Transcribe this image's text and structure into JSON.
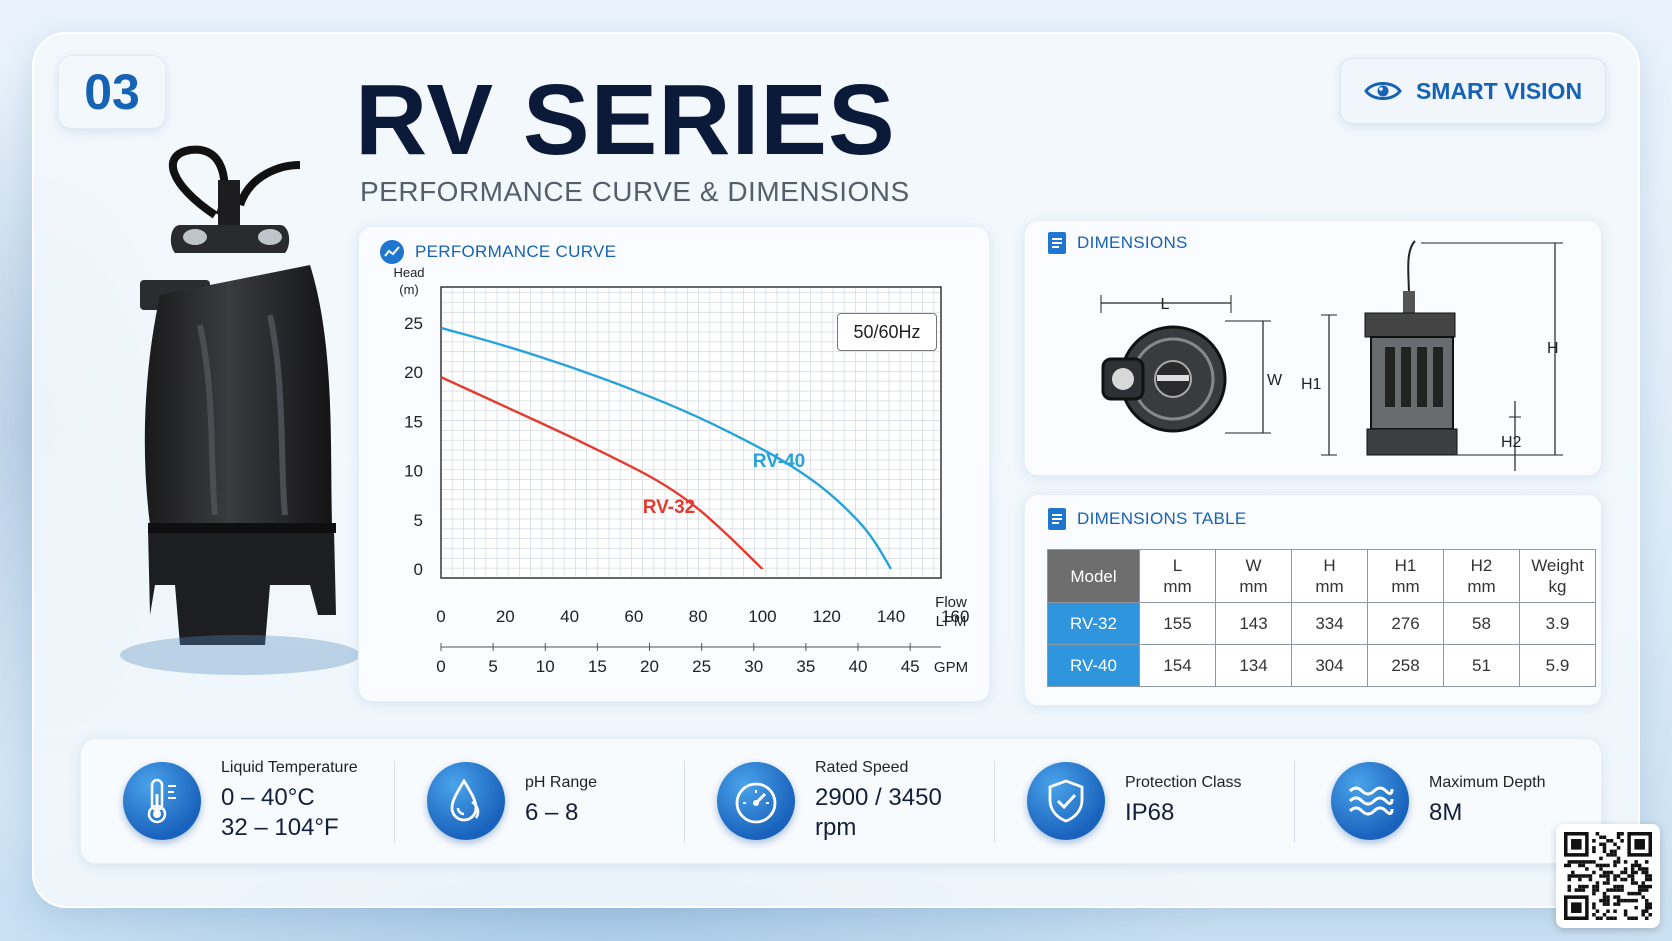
{
  "badge": {
    "number": "03"
  },
  "header": {
    "title": "RV SERIES",
    "subtitle": "PERFORMANCE CURVE & DIMENSIONS"
  },
  "smart_vision": {
    "label": "SMART VISION",
    "icon": "eye-icon"
  },
  "performance": {
    "heading": "PERFORMANCE CURVE",
    "icon": "gauge-chart-icon",
    "freq_label": "50/60Hz"
  },
  "chart_data": {
    "type": "line",
    "title": "",
    "ylabel": "Head\n(m)",
    "ylabel_lines": [
      "Head",
      "(m)"
    ],
    "xlabel": "Flow LPM",
    "xlabel_lines": [
      "Flow",
      "LPM"
    ],
    "x2label": "GPM",
    "xlim": [
      0,
      160
    ],
    "ylim": [
      0,
      25
    ],
    "x_ticks": [
      "0",
      "20",
      "40",
      "60",
      "80",
      "100",
      "120",
      "140",
      "160"
    ],
    "x2_ticks": [
      "0",
      "5",
      "10",
      "15",
      "20",
      "25",
      "30",
      "35",
      "40",
      "45"
    ],
    "y_ticks": [
      "0",
      "5",
      "10",
      "15",
      "20",
      "25"
    ],
    "grid": true,
    "series": [
      {
        "name": "RV-32",
        "color": "#e53a2e",
        "x": [
          0,
          20,
          40,
          60,
          70,
          80,
          90,
          95,
          100
        ],
        "y": [
          19.5,
          16.5,
          13.5,
          10.3,
          8.5,
          6.2,
          3.2,
          1.6,
          0
        ]
      },
      {
        "name": "RV-40",
        "color": "#27a3dc",
        "x": [
          0,
          20,
          40,
          60,
          80,
          100,
          110,
          120,
          130,
          135,
          140
        ],
        "y": [
          24.5,
          22.7,
          20.6,
          18.2,
          15.5,
          12.2,
          10.3,
          8.0,
          4.9,
          2.8,
          0
        ]
      }
    ]
  },
  "dimensions": {
    "heading": "DIMENSIONS",
    "labels": {
      "L": "L",
      "W": "W",
      "H1": "H1",
      "H": "H",
      "H2": "H2"
    }
  },
  "dimensions_table": {
    "heading": "DIMENSIONS TABLE",
    "headers": [
      {
        "top": "Model",
        "bottom": ""
      },
      {
        "top": "L",
        "bottom": "mm"
      },
      {
        "top": "W",
        "bottom": "mm"
      },
      {
        "top": "H",
        "bottom": "mm"
      },
      {
        "top": "H1",
        "bottom": "mm"
      },
      {
        "top": "H2",
        "bottom": "mm"
      },
      {
        "top": "Weight",
        "bottom": "kg"
      }
    ],
    "rows": [
      [
        "RV-32",
        "155",
        "143",
        "334",
        "276",
        "58",
        "3.9"
      ],
      [
        "RV-40",
        "154",
        "134",
        "304",
        "258",
        "51",
        "5.9"
      ]
    ]
  },
  "specs": [
    {
      "icon": "thermometer-icon",
      "label": "Liquid Temperature",
      "value1": "0 – 40°C",
      "value2": "32 – 104°F"
    },
    {
      "icon": "water-drop-icon",
      "label": "pH Range",
      "value1": "6 – 8",
      "value2": ""
    },
    {
      "icon": "speedometer-icon",
      "label": "Rated Speed",
      "value1": "2900 / 3450",
      "value2": "rpm"
    },
    {
      "icon": "shield-check-icon",
      "label": "Protection Class",
      "value1": "IP68",
      "value2": ""
    },
    {
      "icon": "waves-icon",
      "label": "Maximum Depth",
      "value1": "8M",
      "value2": ""
    }
  ]
}
